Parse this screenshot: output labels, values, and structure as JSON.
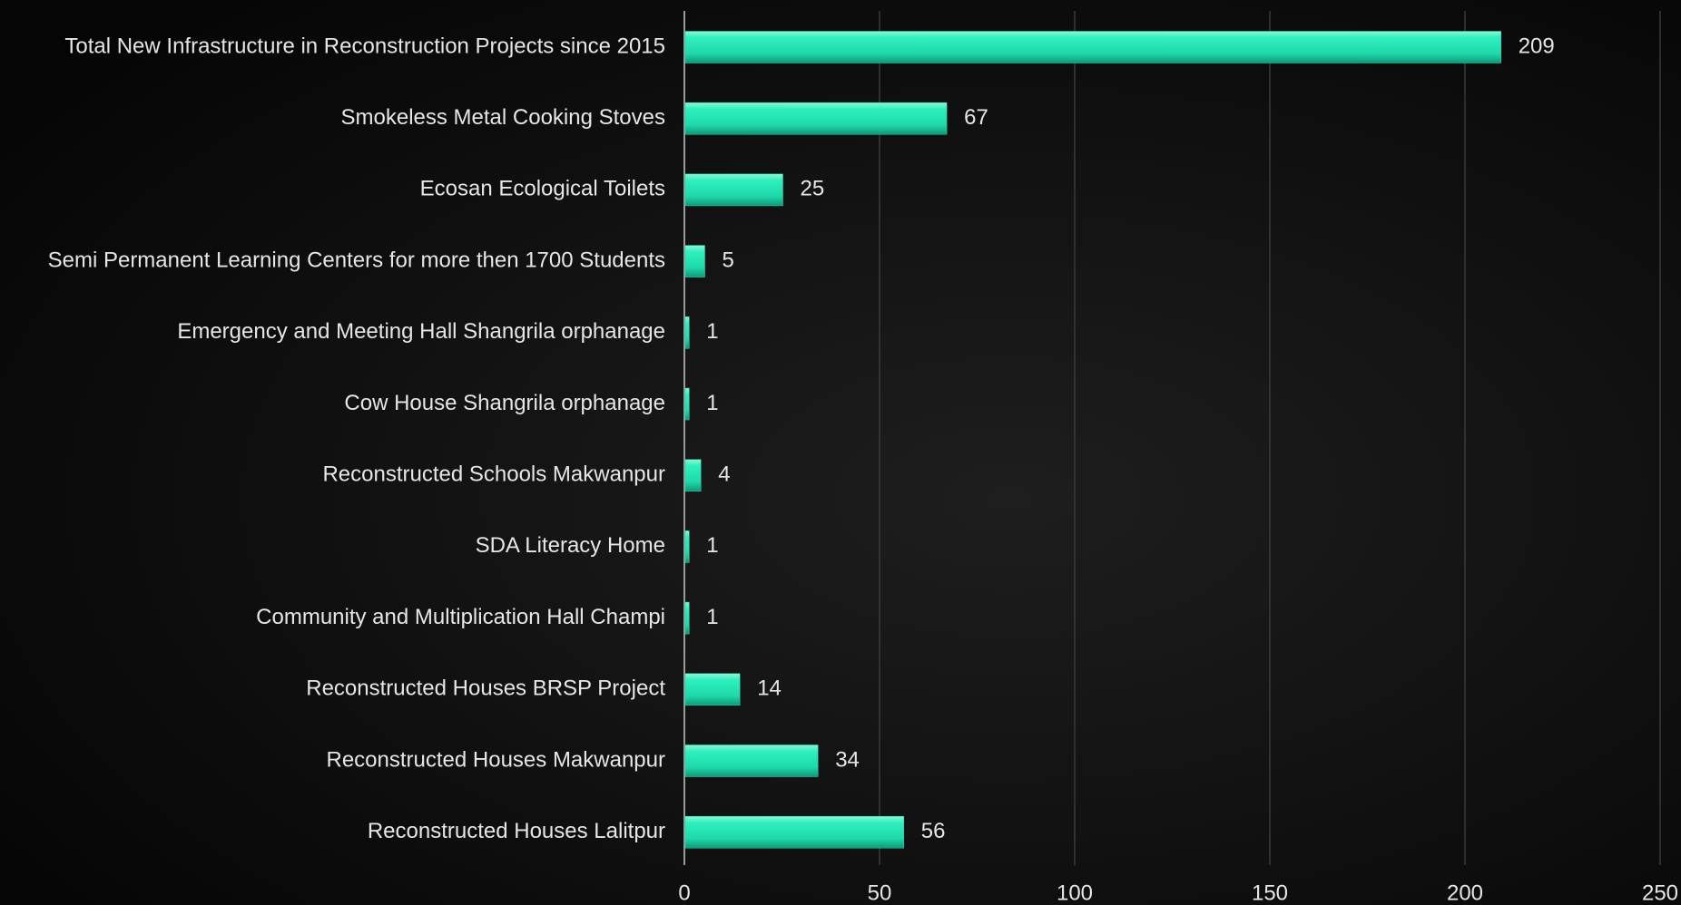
{
  "chart_data": {
    "type": "bar",
    "orientation": "horizontal",
    "categories": [
      "Total New Infrastructure in Reconstruction Projects since 2015",
      "Smokeless Metal Cooking Stoves",
      "Ecosan Ecological Toilets",
      "Semi Permanent Learning Centers for more then 1700 Students",
      "Emergency and Meeting Hall Shangrila orphanage",
      "Cow House Shangrila orphanage",
      "Reconstructed Schools Makwanpur",
      "SDA Literacy Home",
      "Community and Multiplication Hall Champi",
      "Reconstructed Houses BRSP Project",
      "Reconstructed Houses Makwanpur",
      "Reconstructed Houses Lalitpur"
    ],
    "values": [
      209,
      67,
      25,
      5,
      1,
      1,
      4,
      1,
      1,
      14,
      34,
      56
    ],
    "color": "#1fe0b0",
    "xlim": [
      0,
      250
    ],
    "xticks": [
      0,
      50,
      100,
      150,
      200,
      250
    ],
    "grid": true
  }
}
